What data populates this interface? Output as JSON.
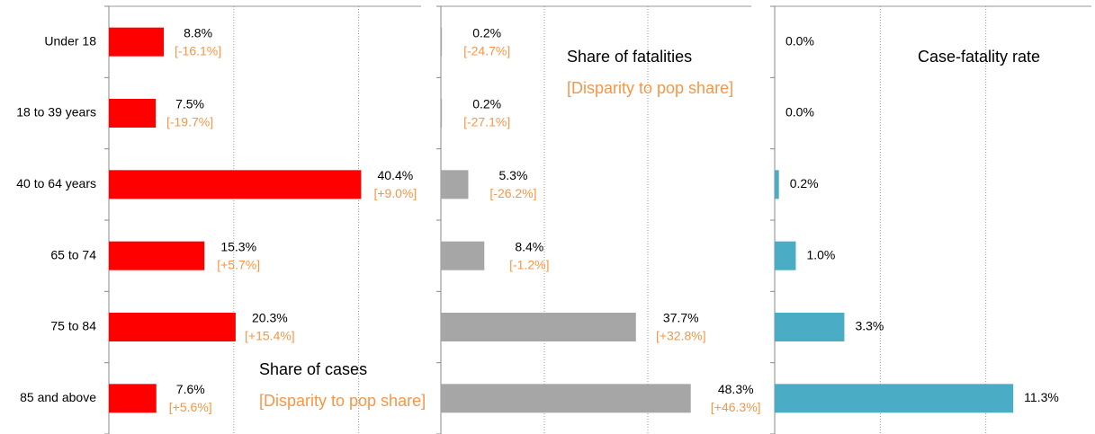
{
  "chart_data": [
    {
      "type": "bar",
      "orientation": "horizontal",
      "categories": [
        "Under 18",
        "18 to 39 years",
        "40 to 64 years",
        "65 to 74",
        "75 to 84",
        "85 and above"
      ],
      "values": [
        8.8,
        7.5,
        40.4,
        15.3,
        20.3,
        7.6
      ],
      "value_labels": [
        "8.8%",
        "7.5%",
        "40.4%",
        "15.3%",
        "20.3%",
        "7.6%"
      ],
      "disparity_labels": [
        "[-16.1%]",
        "[-19.7%]",
        "[+9.0%]",
        "[+5.7%]",
        "[+15.4%]",
        "[+5.6%]"
      ],
      "color": "#ff0000",
      "xlim": [
        0,
        50
      ],
      "gridlines": [
        20,
        40
      ],
      "annotations": [
        "Share of cases",
        "[Disparity to pop share]"
      ]
    },
    {
      "type": "bar",
      "orientation": "horizontal",
      "values": [
        0.2,
        0.2,
        5.3,
        8.4,
        37.7,
        48.3
      ],
      "value_labels": [
        "0.2%",
        "0.2%",
        "5.3%",
        "8.4%",
        "37.7%",
        "48.3%"
      ],
      "disparity_labels": [
        "[-24.7%]",
        "[-27.1%]",
        "[-26.2%]",
        "[-1.2%]",
        "[+32.8%]",
        "[+46.3%]"
      ],
      "color": "#a6a6a6",
      "xlim": [
        0,
        60
      ],
      "gridlines": [
        20,
        40
      ],
      "annotations": [
        "Share of fatalities",
        "[Disparity to pop share]"
      ]
    },
    {
      "type": "bar",
      "orientation": "horizontal",
      "values": [
        0.0,
        0.0,
        0.2,
        1.0,
        3.3,
        11.3
      ],
      "value_labels": [
        "0.0%",
        "0.0%",
        "0.2%",
        "1.0%",
        "3.3%",
        "11.3%"
      ],
      "color": "#4bacc6",
      "xlim": [
        0,
        15
      ],
      "gridlines": [
        5,
        10
      ],
      "annotations": [
        "Case-fatality rate"
      ]
    }
  ]
}
